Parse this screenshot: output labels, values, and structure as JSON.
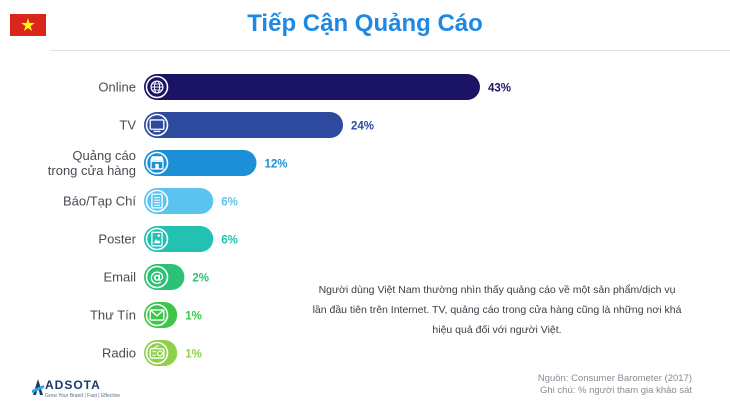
{
  "title": "Tiếp Cận Quảng Cáo",
  "flag_icon": "vietnam-flag-icon",
  "chart_data": {
    "type": "bar",
    "orientation": "horizontal",
    "categories": [
      "Online",
      "TV",
      "Quảng cáo\ntrong cửa hàng",
      "Báo/Tạp Chí",
      "Poster",
      "Email",
      "Thư Tín",
      "Radio"
    ],
    "values": [
      43,
      24,
      12,
      6,
      6,
      2,
      1,
      1
    ],
    "value_labels": [
      "43%",
      "24%",
      "12%",
      "6%",
      "6%",
      "2%",
      "1%",
      "1%"
    ],
    "unit": "%",
    "bar_colors": [
      "#1b1464",
      "#2e4a9e",
      "#1d8fd6",
      "#5bc4ee",
      "#22c1b2",
      "#2bc275",
      "#3ec64a",
      "#8fd14a"
    ],
    "label_colors": [
      "#1b1464",
      "#2e4a9e",
      "#1d8fd6",
      "#5bc4ee",
      "#22c1b2",
      "#2bc275",
      "#3ec64a",
      "#8fd14a"
    ],
    "icons": [
      "globe-icon",
      "tv-icon",
      "store-icon",
      "newspaper-icon",
      "poster-icon",
      "at-sign-icon",
      "envelope-icon",
      "radio-icon"
    ],
    "xlim": [
      0,
      43
    ],
    "title": "Tiếp Cận Quảng Cáo"
  },
  "note": [
    "Người dùng Việt Nam thường nhìn thấy quảng cáo về một sản phẩm/dịch vụ",
    "lần đầu tiên trên Internet. TV, quảng cáo trong cửa hàng cũng là những nơi khá",
    "hiệu quả đối với người Việt."
  ],
  "source": {
    "line1": "Nguồn: Consumer Barometer (2017)",
    "line2": "Ghi chú: % người tham gia khảo sát"
  },
  "logo": {
    "name": "ADSOTA",
    "tagline": "Grow  Your  Brand  |  Fast  |  Effective"
  }
}
